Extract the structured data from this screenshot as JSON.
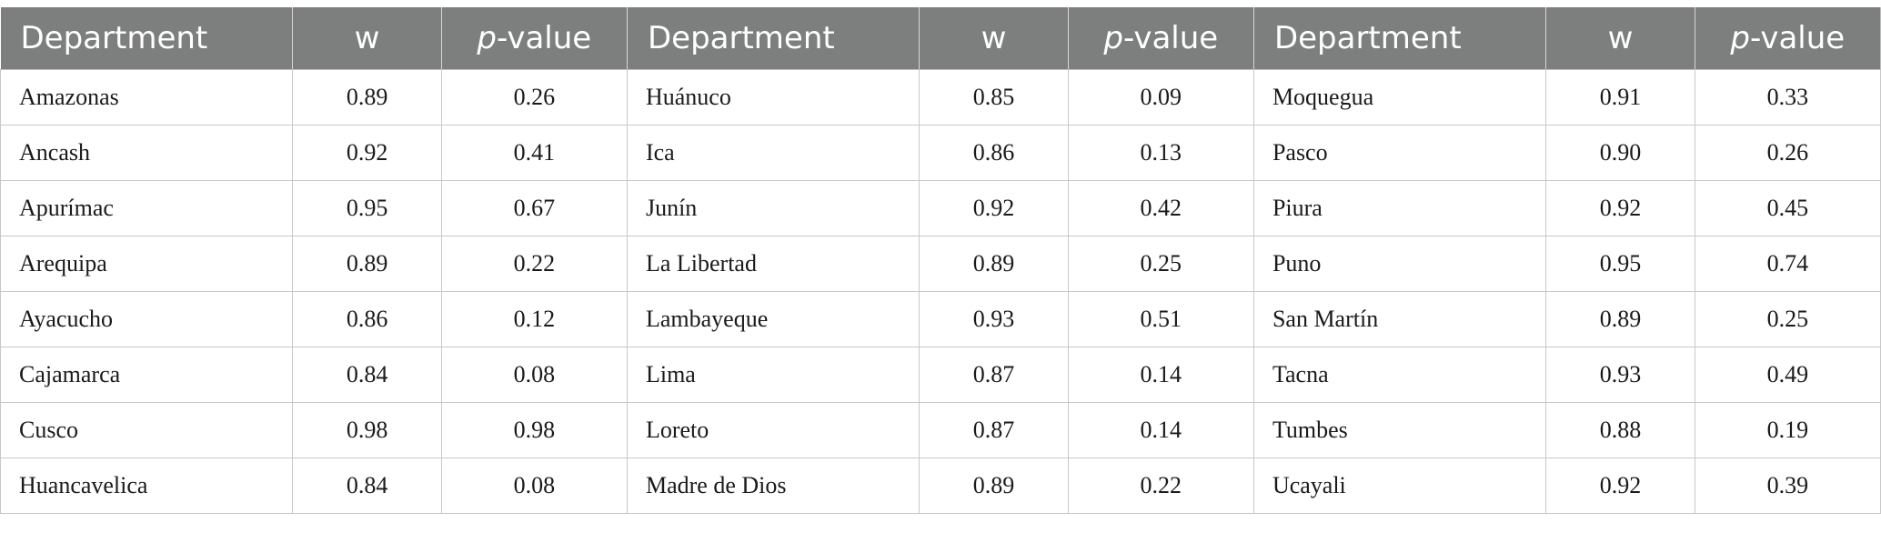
{
  "table": {
    "headers": [
      {
        "dept": "Department",
        "w": "w",
        "p_italic": "p",
        "p_rest": "-value"
      },
      {
        "dept": "Department",
        "w": "w",
        "p_italic": "p",
        "p_rest": "-value"
      },
      {
        "dept": "Department",
        "w": "w",
        "p_italic": "p",
        "p_rest": "-value"
      }
    ],
    "rows": [
      [
        {
          "dept": "Amazonas",
          "w": "0.89",
          "p": "0.26"
        },
        {
          "dept": "Huánuco",
          "w": "0.85",
          "p": "0.09"
        },
        {
          "dept": "Moquegua",
          "w": "0.91",
          "p": "0.33"
        }
      ],
      [
        {
          "dept": "Ancash",
          "w": "0.92",
          "p": "0.41"
        },
        {
          "dept": "Ica",
          "w": "0.86",
          "p": "0.13"
        },
        {
          "dept": "Pasco",
          "w": "0.90",
          "p": "0.26"
        }
      ],
      [
        {
          "dept": "Apurímac",
          "w": "0.95",
          "p": "0.67"
        },
        {
          "dept": "Junín",
          "w": "0.92",
          "p": "0.42"
        },
        {
          "dept": "Piura",
          "w": "0.92",
          "p": "0.45"
        }
      ],
      [
        {
          "dept": "Arequipa",
          "w": "0.89",
          "p": "0.22"
        },
        {
          "dept": "La Libertad",
          "w": "0.89",
          "p": "0.25"
        },
        {
          "dept": "Puno",
          "w": "0.95",
          "p": "0.74"
        }
      ],
      [
        {
          "dept": "Ayacucho",
          "w": "0.86",
          "p": "0.12"
        },
        {
          "dept": "Lambayeque",
          "w": "0.93",
          "p": "0.51"
        },
        {
          "dept": "San Martín",
          "w": "0.89",
          "p": "0.25"
        }
      ],
      [
        {
          "dept": "Cajamarca",
          "w": "0.84",
          "p": "0.08"
        },
        {
          "dept": "Lima",
          "w": "0.87",
          "p": "0.14"
        },
        {
          "dept": "Tacna",
          "w": "0.93",
          "p": "0.49"
        }
      ],
      [
        {
          "dept": "Cusco",
          "w": "0.98",
          "p": "0.98"
        },
        {
          "dept": "Loreto",
          "w": "0.87",
          "p": "0.14"
        },
        {
          "dept": "Tumbes",
          "w": "0.88",
          "p": "0.19"
        }
      ],
      [
        {
          "dept": "Huancavelica",
          "w": "0.84",
          "p": "0.08"
        },
        {
          "dept": "Madre de Dios",
          "w": "0.89",
          "p": "0.22"
        },
        {
          "dept": "Ucayali",
          "w": "0.92",
          "p": "0.39"
        }
      ]
    ],
    "colors": {
      "header_bg": "#7d7e7e",
      "header_text": "#ffffff",
      "grid": "#c8c8c8"
    }
  }
}
